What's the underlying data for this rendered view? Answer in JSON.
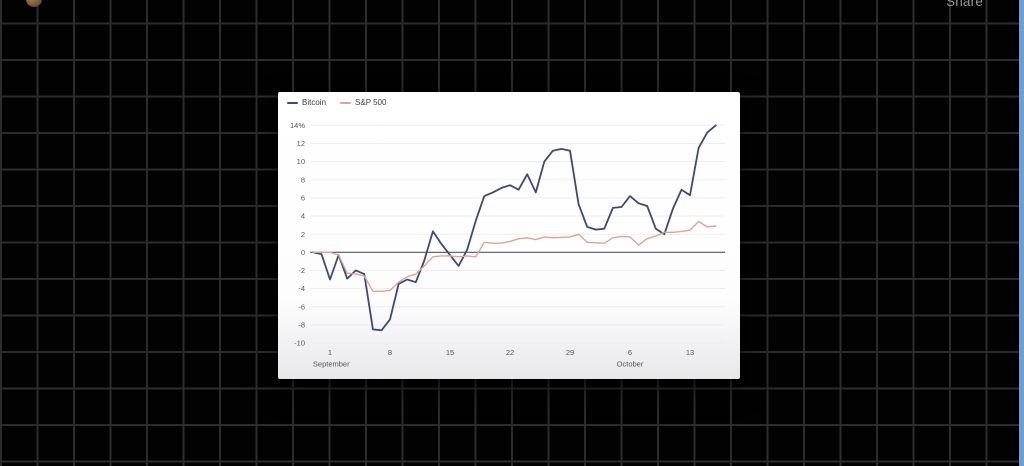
{
  "app": {
    "share_label": "Share"
  },
  "chart_data": {
    "type": "line",
    "title": "",
    "xlabel": "",
    "ylabel": "",
    "y_unit": "%",
    "ylim": [
      -10,
      14
    ],
    "grid": true,
    "zero_line": true,
    "legend_position": "top-left",
    "x": [
      "Aug 30",
      "Aug 31",
      "Sep 1",
      "Sep 2",
      "Sep 3",
      "Sep 4",
      "Sep 5",
      "Sep 6",
      "Sep 7",
      "Sep 8",
      "Sep 9",
      "Sep 10",
      "Sep 11",
      "Sep 12",
      "Sep 13",
      "Sep 14",
      "Sep 15",
      "Sep 16",
      "Sep 17",
      "Sep 18",
      "Sep 19",
      "Sep 20",
      "Sep 21",
      "Sep 22",
      "Sep 23",
      "Sep 24",
      "Sep 25",
      "Sep 26",
      "Sep 27",
      "Sep 28",
      "Sep 29",
      "Sep 30",
      "Oct 1",
      "Oct 2",
      "Oct 3",
      "Oct 4",
      "Oct 5",
      "Oct 6",
      "Oct 7",
      "Oct 8",
      "Oct 9",
      "Oct 10",
      "Oct 11",
      "Oct 12",
      "Oct 13",
      "Oct 14",
      "Oct 15",
      "Oct 16"
    ],
    "series": [
      {
        "name": "Bitcoin",
        "color": "#3f4977",
        "values": [
          0.0,
          -0.2,
          -3.0,
          -0.3,
          -2.9,
          -2.0,
          -2.4,
          -8.5,
          -8.6,
          -7.4,
          -3.5,
          -3.0,
          -3.3,
          -0.9,
          2.3,
          0.9,
          -0.3,
          -1.5,
          0.3,
          3.5,
          6.2,
          6.6,
          7.1,
          7.4,
          6.9,
          8.6,
          6.6,
          10.0,
          11.2,
          11.4,
          11.2,
          5.3,
          2.8,
          2.5,
          2.6,
          4.9,
          5.0,
          6.2,
          5.4,
          5.1,
          2.6,
          2.0,
          4.8,
          6.9,
          6.3,
          11.5,
          13.2,
          14.0
        ]
      },
      {
        "name": "S&P 500",
        "color": "#dfa492",
        "values": [
          0.0,
          0.0,
          0.0,
          -0.3,
          -2.3,
          -2.4,
          -2.6,
          -4.3,
          -4.3,
          -4.2,
          -3.3,
          -2.7,
          -2.4,
          -1.5,
          -0.5,
          -0.4,
          -0.4,
          -0.5,
          -0.4,
          -0.5,
          1.1,
          1.0,
          1.0,
          1.2,
          1.5,
          1.6,
          1.4,
          1.7,
          1.6,
          1.65,
          1.7,
          2.0,
          1.1,
          1.05,
          1.0,
          1.6,
          1.75,
          1.7,
          0.8,
          1.5,
          1.8,
          2.2,
          2.2,
          2.3,
          2.45,
          3.4,
          2.8,
          2.9
        ]
      }
    ],
    "y_ticks": [
      14,
      12,
      10,
      8,
      6,
      4,
      2,
      0,
      -2,
      -4,
      -6,
      -8,
      -10
    ],
    "y_tick_labels": [
      "14%",
      "12",
      "10",
      "8",
      "6",
      "4",
      "2",
      "0",
      "-2",
      "-4",
      "-6",
      "-8",
      "-10"
    ],
    "x_ticks": [
      {
        "label": "1",
        "index": 2
      },
      {
        "label": "8",
        "index": 9
      },
      {
        "label": "15",
        "index": 16
      },
      {
        "label": "22",
        "index": 23
      },
      {
        "label": "29",
        "index": 30
      },
      {
        "label": "6",
        "index": 37
      },
      {
        "label": "13",
        "index": 44
      }
    ],
    "month_labels": [
      {
        "label": "September",
        "index": 2,
        "anchor": "start"
      },
      {
        "label": "October",
        "index": 37,
        "anchor": "middle"
      }
    ]
  },
  "colors": {
    "canvas_bg": "#020202",
    "grid_line": "#2c2c2e",
    "card_bg": "#ffffff",
    "chart_grid": "#ededf1",
    "zero_line": "#55565e",
    "axis_text": "#55555a",
    "legend_text": "#3d3d42",
    "share_text": "#97999d",
    "edge_strip": "#6d9ed7"
  }
}
